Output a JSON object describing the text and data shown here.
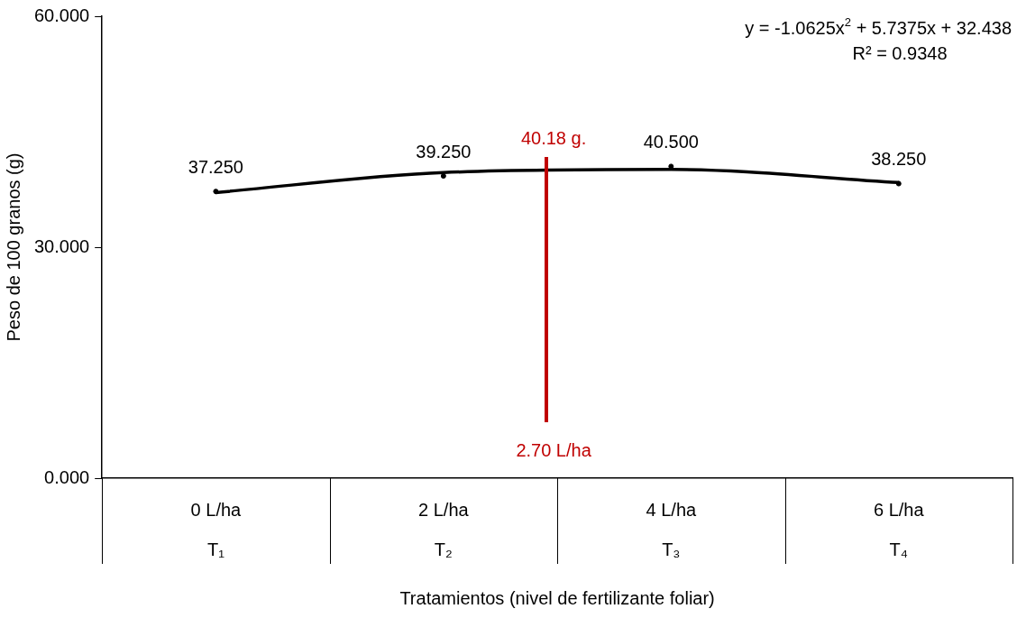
{
  "chart_data": {
    "type": "line",
    "xlabel": "Tratamientos (nivel de fertilizante foliar)",
    "ylabel": "Peso de 100 granos (g)",
    "categories": [
      "0 L/ha\nT₁",
      "2 L/ha\nT₂",
      "4 L/ha\nT₃",
      "6 L/ha\nT₄"
    ],
    "ylim": [
      0,
      60
    ],
    "yticks": [
      {
        "value": 0,
        "label": "0.000"
      },
      {
        "value": 30,
        "label": "30.000"
      },
      {
        "value": 60,
        "label": "60.000"
      }
    ],
    "grid": false,
    "legend": false,
    "marker": "none",
    "line_style": "solid",
    "series": [
      {
        "type": "scatter",
        "marker": "circle",
        "color": "#000000",
        "values": [
          37.25,
          39.25,
          40.5,
          38.25
        ],
        "value_labels": [
          "37.250",
          "39.250",
          "40.500",
          "38.250"
        ]
      },
      {
        "color": "#000000",
        "values": [
          37.1,
          39.7,
          40.1,
          38.4
        ]
      }
    ],
    "annotations": [
      "y = -1.0625x$^{2}$ + 5.7375x + 32.438",
      "R² = 0.9348",
      "40.18 g.",
      "2.70 L/ha"
    ]
  }
}
